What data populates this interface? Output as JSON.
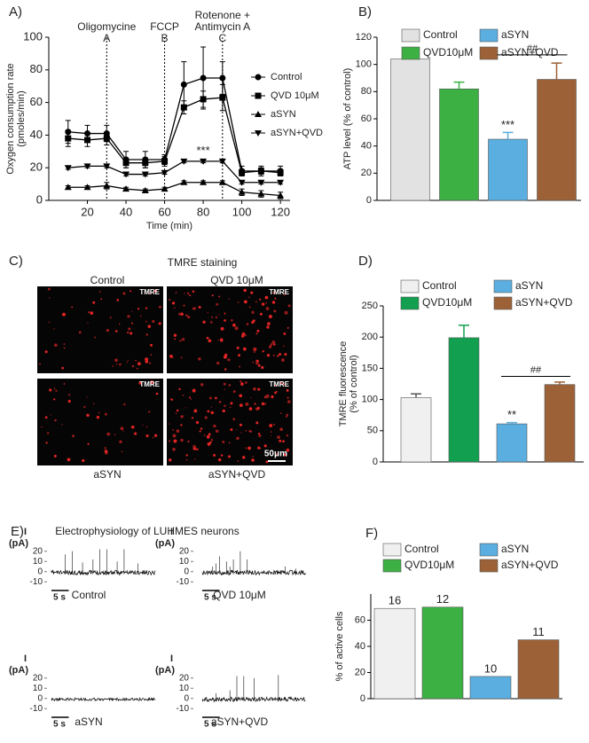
{
  "chart_data": [
    {
      "type": "line",
      "panel": "A)",
      "ylabel": [
        "Oxygen consumption rate",
        "(pmoles/min)"
      ],
      "xlabel": "Time (min)",
      "x": [
        10,
        20,
        30,
        40,
        50,
        60,
        70,
        80,
        90,
        100,
        110,
        120
      ],
      "xlim": [
        0,
        125
      ],
      "xticks": [
        20,
        40,
        60,
        80,
        100,
        120
      ],
      "ylim": [
        0,
        100
      ],
      "yticks": [
        0,
        20,
        40,
        60,
        80,
        100
      ],
      "events": [
        {
          "x": 30,
          "label": [
            "Oligomycine",
            "A"
          ]
        },
        {
          "x": 60,
          "label": [
            "FCCP",
            "B"
          ]
        },
        {
          "x": 90,
          "label": [
            "Rotenone +",
            "Antimycin A",
            "C"
          ]
        }
      ],
      "annotations": [
        {
          "text": "***",
          "x": 80,
          "y": 30
        }
      ],
      "legend": "right",
      "series": [
        {
          "name": "Control",
          "marker": "circle",
          "color": "#000000",
          "values": [
            42,
            41,
            41,
            25,
            25,
            25,
            71,
            75,
            75,
            18,
            18,
            18
          ],
          "errors": [
            7,
            5,
            5,
            5,
            5,
            3,
            14,
            19,
            10,
            3,
            3,
            3
          ]
        },
        {
          "name": "QVD 10μM",
          "marker": "square",
          "color": "#000000",
          "values": [
            38,
            37,
            38,
            23,
            23,
            24,
            57,
            62,
            63,
            17,
            18,
            17
          ],
          "errors": [
            5,
            4,
            4,
            3,
            3,
            3,
            4,
            5,
            8,
            2,
            2,
            2
          ]
        },
        {
          "name": "aSYN",
          "marker": "triangle-up",
          "color": "#000000",
          "values": [
            8,
            8,
            9,
            7,
            6,
            7,
            11,
            11,
            11,
            5,
            4,
            3
          ],
          "errors": [
            1,
            1,
            2,
            1,
            1,
            1,
            1,
            1,
            1,
            2,
            2,
            2
          ]
        },
        {
          "name": "aSYN+QVD",
          "marker": "triangle-down",
          "color": "#000000",
          "values": [
            20,
            21,
            21,
            16,
            16,
            17,
            24,
            24,
            24,
            11,
            11,
            11
          ],
          "errors": [
            1,
            1,
            1,
            1,
            1,
            1,
            1,
            1,
            1,
            1,
            1,
            1
          ]
        }
      ]
    },
    {
      "type": "bar",
      "panel": "B)",
      "ylabel": [
        "ATP level (% of control)"
      ],
      "categories": [
        "Control",
        "QVD10μM",
        "aSYN",
        "aSYN+QVD"
      ],
      "values": [
        104,
        82,
        45,
        89
      ],
      "errors": [
        4,
        5,
        5,
        12
      ],
      "colors": [
        "#e2e2e2",
        "#3cb043",
        "#5aaee0",
        "#9c6137"
      ],
      "ylim": [
        0,
        120
      ],
      "yticks": [
        0,
        20,
        40,
        60,
        80,
        100,
        120
      ],
      "stars": [
        null,
        null,
        "***",
        null
      ],
      "bracket": {
        "text": "##",
        "y": 107
      }
    },
    {
      "type": "image",
      "panel": "C)",
      "title": "TMRE staining",
      "images": [
        {
          "label": "Control",
          "tag": "TMRE"
        },
        {
          "label": "QVD 10μM",
          "tag": "TMRE"
        },
        {
          "label": "aSYN",
          "tag": "TMRE"
        },
        {
          "label": "aSYN+QVD",
          "tag": "TMRE"
        }
      ],
      "scale_bar": "50μm"
    },
    {
      "type": "bar",
      "panel": "D)",
      "ylabel": [
        "TMRE fluorescence",
        "(% of control)"
      ],
      "categories": [
        "Control",
        "QVD10μM",
        "aSYN",
        "aSYN+QVD"
      ],
      "values": [
        103,
        199,
        61,
        124
      ],
      "errors": [
        6,
        20,
        2,
        4
      ],
      "colors": [
        "#f0f0f0",
        "#12a050",
        "#5aaee0",
        "#9c6137"
      ],
      "ylim": [
        0,
        250
      ],
      "yticks": [
        0,
        50,
        100,
        150,
        200,
        250
      ],
      "stars": [
        null,
        null,
        "**",
        null
      ],
      "bracket": {
        "text": "##",
        "y": 137
      }
    },
    {
      "type": "traces",
      "panel": "E)",
      "title": "Electrophysiology of LUHMES neurons",
      "ylabel": [
        "I",
        "(pA)"
      ],
      "ylim": [
        -15,
        25
      ],
      "yticks": [
        20,
        10,
        0,
        -10
      ],
      "xlim": [
        0,
        30
      ],
      "scale_bar": {
        "value": 5,
        "label": "5 s"
      },
      "panels": [
        {
          "label": "Control",
          "spikes": [
            {
              "t": 4,
              "peak": 17
            },
            {
              "t": 6,
              "peak": 20
            },
            {
              "t": 9,
              "peak": 9
            },
            {
              "t": 12,
              "peak": 12
            },
            {
              "t": 14,
              "peak": 22
            },
            {
              "t": 16,
              "peak": 22
            },
            {
              "t": 19,
              "peak": 10
            },
            {
              "t": 21,
              "peak": 22
            },
            {
              "t": 25,
              "peak": 8
            }
          ]
        },
        {
          "label": "QVD 10μM",
          "spikes": [
            {
              "t": 3,
              "peak": 5
            },
            {
              "t": 4,
              "peak": 8
            },
            {
              "t": 5,
              "peak": 15
            },
            {
              "t": 7,
              "peak": 10
            },
            {
              "t": 8,
              "peak": 5
            },
            {
              "t": 9,
              "peak": 12
            },
            {
              "t": 11,
              "peak": 20
            },
            {
              "t": 13,
              "peak": 12
            },
            {
              "t": 24,
              "peak": 5
            },
            {
              "t": 27,
              "peak": 3
            }
          ]
        },
        {
          "label": "aSYN",
          "spikes": []
        },
        {
          "label": "aSYN+QVD",
          "spikes": [
            {
              "t": 4,
              "peak": 5
            },
            {
              "t": 8,
              "peak": 8
            },
            {
              "t": 10,
              "peak": 22
            },
            {
              "t": 12,
              "peak": 22
            },
            {
              "t": 15,
              "peak": 20
            },
            {
              "t": 22,
              "peak": 23
            }
          ]
        }
      ]
    },
    {
      "type": "bar",
      "panel": "F)",
      "ylabel": [
        "% of active cells"
      ],
      "categories": [
        "Control",
        "QVD10μM",
        "aSYN",
        "aSYN+QVD"
      ],
      "values": [
        69,
        70,
        17,
        45
      ],
      "n": [
        16,
        12,
        10,
        11
      ],
      "colors": [
        "#f0f0f0",
        "#3cb043",
        "#5aaee0",
        "#9c6137"
      ],
      "ylim": [
        0,
        80
      ],
      "yticks": [
        0,
        20,
        40,
        60
      ]
    }
  ]
}
